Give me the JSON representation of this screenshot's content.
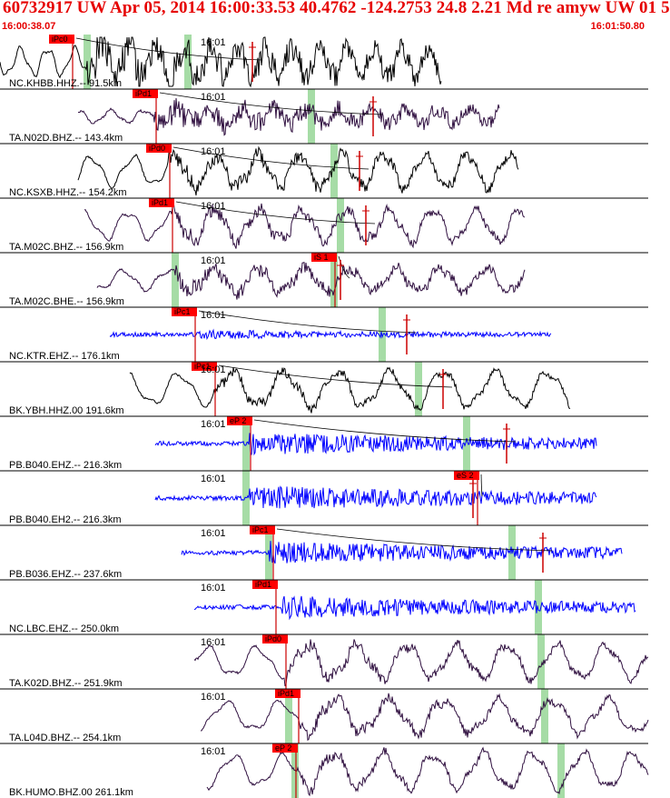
{
  "header": {
    "title": "60732917 UW Apr 05, 2014 16:00:33.53    40.4762 -124.2753 24.8 2.21 Md re amyw UW 01    5",
    "time_start": "16:00:38.07",
    "time_end": "16:01:50.80"
  },
  "colors": {
    "header_text": "#e60000",
    "pick_flag": "#ff0000",
    "trace_broadband": "#000000",
    "trace_ta": "#301040",
    "trace_shortperiod": "#0000ff",
    "theoretical_bar": "#a6dca6",
    "pick_line": "#cc0000",
    "separator": "#000000"
  },
  "chart_data": {
    "type": "line",
    "title": "60732917 UW Apr 05, 2014 16:00:33.53    40.4762 -124.2753 24.8 2.21 Md re amyw UW 01    5",
    "x_range": [
      "16:00:38.07",
      "16:01:50.80"
    ],
    "minute_tick_label": "16:01",
    "grid": false,
    "series": [
      {
        "label": "NC.KHBB.HHZ.-- 91.5km",
        "pick": "iPc0",
        "color": "black",
        "noise": 0.9,
        "amp": 0.75,
        "period": 30,
        "start": 0.0,
        "end": 0.68,
        "onset": 0.135,
        "flag": 0.075,
        "green": [
          0.135,
          0.29
        ],
        "sticks": [
          0.39
        ]
      },
      {
        "label": "TA.N02D.BHZ.-- 143.4km",
        "pick": "iPd1",
        "color": "ta",
        "noise": 0.6,
        "amp": 0.35,
        "period": 36,
        "start": 0.12,
        "end": 0.77,
        "onset": 0.237,
        "flag": 0.205,
        "green": [
          0.48
        ],
        "sticks": [
          0.575
        ]
      },
      {
        "label": "NC.KSXB.HHZ.-- 154.2km",
        "pick": "iPd0",
        "color": "black",
        "noise": 0.4,
        "amp": 0.8,
        "period": 46,
        "start": 0.12,
        "end": 0.8,
        "onset": 0.26,
        "flag": 0.225,
        "green": [
          0.515
        ],
        "sticks": [
          0.555
        ]
      },
      {
        "label": "TA.M02C.BHZ.-- 156.9km",
        "pick": "iPd1",
        "color": "ta",
        "noise": 0.35,
        "amp": 0.75,
        "period": 48,
        "start": 0.13,
        "end": 0.81,
        "onset": 0.265,
        "flag": 0.23,
        "green": [
          0.525
        ],
        "sticks": [
          0.565
        ]
      },
      {
        "label": "TA.M02C.BHE.-- 156.9km",
        "pick": "iS 1",
        "color": "ta",
        "noise": 0.4,
        "amp": 0.55,
        "period": 50,
        "start": 0.15,
        "end": 0.81,
        "onset": 0.27,
        "flag": 0.48,
        "green": [
          0.27,
          0.515
        ],
        "sticks": [
          0.525
        ]
      },
      {
        "label": "NC.KTR.EHZ.-- 176.1km",
        "pick": "iPc1",
        "color": "blue",
        "noise": 0.22,
        "amp": 0.0,
        "period": 40,
        "start": 0.17,
        "end": 0.85,
        "onset": 0.305,
        "flag": 0.265,
        "green": [
          0.59
        ],
        "sticks": [
          0.628
        ]
      },
      {
        "label": "BK.YBH.HHZ.00 191.6km",
        "pick": "iPc1",
        "color": "black",
        "noise": 0.25,
        "amp": 0.85,
        "period": 58,
        "start": 0.2,
        "end": 0.88,
        "onset": 0.33,
        "flag": 0.295,
        "green": [
          0.645
        ],
        "sticks": [
          0.683
        ]
      },
      {
        "label": "PB.B040.EHZ.-- 216.3km",
        "pick": "eP 2",
        "color": "blue",
        "noise": 0.55,
        "amp": 0.0,
        "period": 40,
        "start": 0.24,
        "end": 0.92,
        "onset": 0.385,
        "flag": 0.35,
        "green": [
          0.38,
          0.72
        ],
        "sticks": [
          0.782
        ]
      },
      {
        "label": "PB.B040.EH2.-- 216.3km",
        "pick": "eS 2",
        "color": "blue",
        "noise": 0.6,
        "amp": 0.0,
        "period": 40,
        "start": 0.24,
        "end": 0.92,
        "onset": 0.385,
        "flag": 0.7,
        "green": [
          0.38
        ],
        "sticks": [
          0.73
        ]
      },
      {
        "label": "PB.B036.EHZ.-- 237.6km",
        "pick": "iPc1",
        "color": "blue",
        "noise": 0.55,
        "amp": 0.0,
        "period": 40,
        "start": 0.28,
        "end": 0.96,
        "onset": 0.415,
        "flag": 0.385,
        "green": [
          0.415,
          0.79
        ],
        "sticks": [
          0.838
        ]
      },
      {
        "label": "NC.LBC.EHZ.-- 250.0km",
        "pick": "iPd1",
        "color": "blue",
        "noise": 0.55,
        "amp": 0.0,
        "period": 40,
        "start": 0.3,
        "end": 0.98,
        "onset": 0.435,
        "flag": 0.39,
        "green": [
          0.83
        ],
        "sticks": []
      },
      {
        "label": "TA.K02D.BHZ.-- 251.9km",
        "pick": "iPd0",
        "color": "ta",
        "noise": 0.3,
        "amp": 0.8,
        "period": 55,
        "start": 0.3,
        "end": 1.0,
        "onset": 0.44,
        "flag": 0.405,
        "green": [
          0.835
        ],
        "sticks": []
      },
      {
        "label": "TA.L04D.BHZ.-- 254.1km",
        "pick": "iPd1",
        "color": "ta",
        "noise": 0.3,
        "amp": 0.8,
        "period": 60,
        "start": 0.31,
        "end": 1.0,
        "onset": 0.46,
        "flag": 0.425,
        "green": [
          0.445,
          0.84
        ],
        "sticks": []
      },
      {
        "label": "BK.HUMO.BHZ.00 261.1km",
        "pick": "eP 2",
        "color": "ta",
        "noise": 0.25,
        "amp": 0.85,
        "period": 55,
        "start": 0.32,
        "end": 1.0,
        "onset": 0.46,
        "flag": 0.42,
        "green": [
          0.455,
          0.865
        ],
        "sticks": []
      }
    ]
  }
}
